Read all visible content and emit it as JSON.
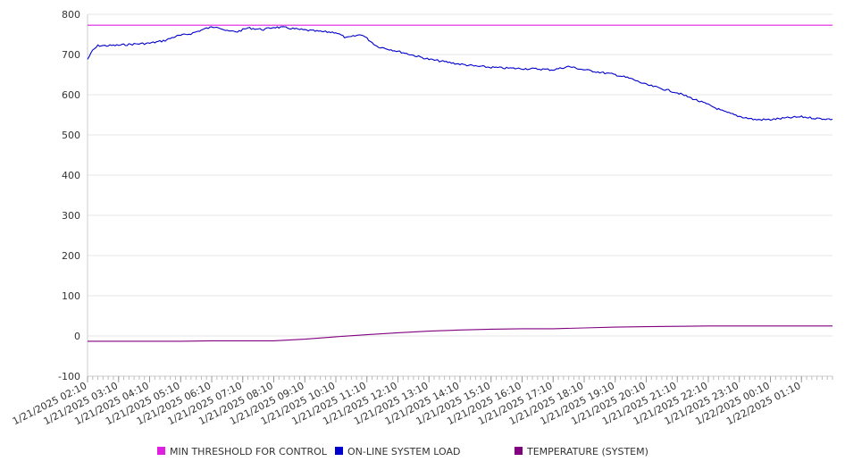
{
  "chart_data": {
    "type": "line",
    "title": "",
    "xlabel": "",
    "ylabel": "",
    "ylim": [
      -100,
      800
    ],
    "yticks": [
      800,
      700,
      600,
      500,
      400,
      300,
      200,
      100,
      0,
      -100
    ],
    "x_range": [
      "1/21/2025 02:10",
      "1/22/2025 02:10"
    ],
    "x_tick_labels": [
      "1/21/2025 02:10",
      "1/21/2025 03:10",
      "1/21/2025 04:10",
      "1/21/2025 05:10",
      "1/21/2025 06:10",
      "1/21/2025 07:10",
      "1/21/2025 08:10",
      "1/21/2025 09:10",
      "1/21/2025 10:10",
      "1/21/2025 11:10",
      "1/21/2025 12:10",
      "1/21/2025 13:10",
      "1/21/2025 14:10",
      "1/21/2025 15:10",
      "1/21/2025 16:10",
      "1/21/2025 17:10",
      "1/21/2025 18:10",
      "1/21/2025 19:10",
      "1/21/2025 20:10",
      "1/21/2025 21:10",
      "1/21/2025 22:10",
      "1/21/2025 23:10",
      "1/22/2025 00:10",
      "1/22/2025 01:10"
    ],
    "grid": true,
    "legend_position": "bottom",
    "series": [
      {
        "name": "MIN THRESHOLD FOR CONTROL",
        "color": "#e020e0",
        "points": [
          [
            "1/21/2025 02:10",
            773
          ],
          [
            "1/22/2025 02:10",
            773
          ]
        ]
      },
      {
        "name": "ON-LINE SYSTEM LOAD",
        "color": "#0000cc",
        "points": [
          [
            "1/21/2025 02:10",
            688
          ],
          [
            "1/21/2025 02:20",
            710
          ],
          [
            "1/21/2025 02:30",
            722
          ],
          [
            "1/21/2025 02:50",
            722
          ],
          [
            "1/21/2025 03:10",
            723
          ],
          [
            "1/21/2025 03:40",
            726
          ],
          [
            "1/21/2025 04:10",
            728
          ],
          [
            "1/21/2025 04:40",
            735
          ],
          [
            "1/21/2025 05:00",
            745
          ],
          [
            "1/21/2025 05:30",
            752
          ],
          [
            "1/21/2025 06:00",
            765
          ],
          [
            "1/21/2025 06:20",
            770
          ],
          [
            "1/21/2025 06:40",
            758
          ],
          [
            "1/21/2025 07:00",
            757
          ],
          [
            "1/21/2025 07:20",
            766
          ],
          [
            "1/21/2025 07:50",
            762
          ],
          [
            "1/21/2025 08:10",
            768
          ],
          [
            "1/21/2025 08:30",
            767
          ],
          [
            "1/21/2025 09:00",
            762
          ],
          [
            "1/21/2025 09:40",
            757
          ],
          [
            "1/21/2025 10:10",
            755
          ],
          [
            "1/21/2025 10:30",
            741
          ],
          [
            "1/21/2025 11:00",
            750
          ],
          [
            "1/21/2025 11:10",
            740
          ],
          [
            "1/21/2025 11:30",
            720
          ],
          [
            "1/21/2025 12:10",
            708
          ],
          [
            "1/21/2025 12:40",
            698
          ],
          [
            "1/21/2025 13:10",
            688
          ],
          [
            "1/21/2025 13:40",
            682
          ],
          [
            "1/21/2025 14:10",
            676
          ],
          [
            "1/21/2025 14:40",
            671
          ],
          [
            "1/21/2025 15:10",
            668
          ],
          [
            "1/21/2025 15:40",
            666
          ],
          [
            "1/21/2025 16:10",
            665
          ],
          [
            "1/21/2025 16:40",
            664
          ],
          [
            "1/21/2025 17:10",
            662
          ],
          [
            "1/21/2025 17:40",
            670
          ],
          [
            "1/21/2025 18:10",
            662
          ],
          [
            "1/21/2025 18:40",
            656
          ],
          [
            "1/21/2025 19:10",
            650
          ],
          [
            "1/21/2025 19:40",
            640
          ],
          [
            "1/21/2025 20:10",
            625
          ],
          [
            "1/21/2025 20:40",
            615
          ],
          [
            "1/21/2025 21:10",
            605
          ],
          [
            "1/21/2025 21:40",
            590
          ],
          [
            "1/21/2025 22:10",
            575
          ],
          [
            "1/21/2025 22:40",
            558
          ],
          [
            "1/21/2025 23:10",
            546
          ],
          [
            "1/21/2025 23:40",
            538
          ],
          [
            "1/22/2025 00:10",
            538
          ],
          [
            "1/22/2025 00:40",
            542
          ],
          [
            "1/22/2025 01:10",
            545
          ],
          [
            "1/22/2025 01:40",
            541
          ],
          [
            "1/22/2025 02:10",
            539
          ]
        ]
      },
      {
        "name": "TEMPERATURE (SYSTEM)",
        "color": "#800080",
        "points": [
          [
            "1/21/2025 02:10",
            -13
          ],
          [
            "1/21/2025 05:10",
            -13
          ],
          [
            "1/21/2025 06:10",
            -12
          ],
          [
            "1/21/2025 07:10",
            -12
          ],
          [
            "1/21/2025 08:10",
            -12
          ],
          [
            "1/21/2025 09:10",
            -8
          ],
          [
            "1/21/2025 10:10",
            -2
          ],
          [
            "1/21/2025 11:10",
            3
          ],
          [
            "1/21/2025 12:10",
            8
          ],
          [
            "1/21/2025 13:10",
            12
          ],
          [
            "1/21/2025 14:10",
            15
          ],
          [
            "1/21/2025 15:10",
            17
          ],
          [
            "1/21/2025 16:10",
            18
          ],
          [
            "1/21/2025 17:10",
            18
          ],
          [
            "1/21/2025 18:10",
            20
          ],
          [
            "1/21/2025 19:10",
            22
          ],
          [
            "1/21/2025 20:10",
            23
          ],
          [
            "1/21/2025 21:10",
            24
          ],
          [
            "1/21/2025 22:10",
            25
          ],
          [
            "1/21/2025 23:10",
            25
          ],
          [
            "1/22/2025 00:10",
            25
          ],
          [
            "1/22/2025 02:10",
            25
          ]
        ]
      }
    ]
  }
}
